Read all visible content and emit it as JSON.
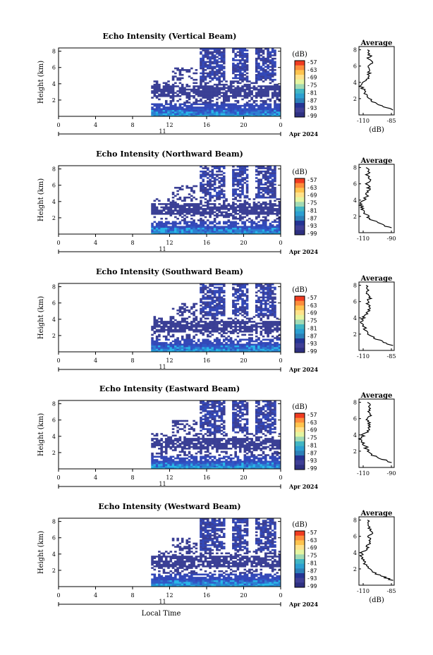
{
  "chart_data": [
    {
      "type": "heatmap",
      "title": "Echo Intensity (Vertical Beam)",
      "xlabel": "",
      "ylabel": "Height (km)",
      "xticks": [
        "0",
        "4",
        "8",
        "12",
        "16",
        "20",
        "0"
      ],
      "yticks": [
        "2",
        "4",
        "6",
        "8"
      ],
      "day_label": "11",
      "date_label": "Apr 2024",
      "data_start_hour": 10,
      "colorbar": {
        "unit": "(dB)",
        "ticks": [
          "-57",
          "-63",
          "-69",
          "-75",
          "-81",
          "-87",
          "-93",
          "-99"
        ]
      },
      "profile": {
        "title": "Average",
        "xlabel": "(dB)",
        "xticks": [
          "-110",
          "-85"
        ],
        "xlim": [
          -110,
          -85
        ],
        "yticks": [
          "2",
          "4",
          "6",
          "8"
        ],
        "ylim": [
          0,
          8
        ],
        "heights": [
          0.6,
          1.0,
          1.5,
          2.0,
          2.5,
          3.0,
          3.5,
          4.0,
          4.5,
          5.0,
          5.5,
          6.0,
          6.5,
          7.0,
          7.5,
          8.0
        ],
        "values": [
          -86,
          -92,
          -99,
          -103,
          -105,
          -106,
          -109,
          -108,
          -104,
          -103,
          -102,
          -103,
          -101,
          -103,
          -102,
          -104
        ]
      }
    },
    {
      "type": "heatmap",
      "title": "Echo Intensity (Northward Beam)",
      "xlabel": "",
      "ylabel": "Height (km)",
      "xticks": [
        "0",
        "4",
        "8",
        "12",
        "16",
        "20",
        "0"
      ],
      "yticks": [
        "2",
        "4",
        "6",
        "8"
      ],
      "day_label": "11",
      "date_label": "Apr 2024",
      "data_start_hour": 10,
      "colorbar": {
        "unit": "(dB)",
        "ticks": [
          "-57",
          "-63",
          "-69",
          "-75",
          "-81",
          "-87",
          "-93",
          "-99"
        ]
      },
      "profile": {
        "title": "Average",
        "xlabel": "",
        "xticks": [
          "-110",
          "-90"
        ],
        "xlim": [
          -110,
          -85
        ],
        "yticks": [
          "2",
          "4",
          "6",
          "8"
        ],
        "ylim": [
          0,
          8
        ],
        "heights": [
          0.6,
          1.0,
          1.5,
          2.0,
          2.5,
          3.0,
          3.5,
          4.0,
          4.5,
          5.0,
          5.5,
          6.0,
          6.5,
          7.0,
          7.5,
          8.0
        ],
        "values": [
          -87,
          -94,
          -100,
          -104,
          -106,
          -108,
          -109,
          -107,
          -104,
          -104,
          -103,
          -104,
          -103,
          -104,
          -103,
          -105
        ]
      }
    },
    {
      "type": "heatmap",
      "title": "Echo Intensity (Southward Beam)",
      "xlabel": "",
      "ylabel": "Height (km)",
      "xticks": [
        "0",
        "4",
        "8",
        "12",
        "16",
        "20",
        "0"
      ],
      "yticks": [
        "2",
        "4",
        "6",
        "8"
      ],
      "day_label": "11",
      "date_label": "Apr 2024",
      "data_start_hour": 10,
      "colorbar": {
        "unit": "(dB)",
        "ticks": [
          "-57",
          "-63",
          "-69",
          "-75",
          "-81",
          "-87",
          "-93",
          "-99"
        ]
      },
      "profile": {
        "title": "Average",
        "xlabel": "",
        "xticks": [
          "-110",
          "-85"
        ],
        "xlim": [
          -110,
          -85
        ],
        "yticks": [
          "2",
          "4",
          "6",
          "8"
        ],
        "ylim": [
          0,
          8
        ],
        "heights": [
          0.6,
          1.0,
          1.5,
          2.0,
          2.5,
          3.0,
          3.5,
          4.0,
          4.5,
          5.0,
          5.5,
          6.0,
          6.5,
          7.0,
          7.5,
          8.0
        ],
        "values": [
          -86,
          -93,
          -99,
          -103,
          -105,
          -107,
          -109,
          -107,
          -104,
          -103,
          -103,
          -104,
          -102,
          -104,
          -103,
          -105
        ]
      }
    },
    {
      "type": "heatmap",
      "title": "Echo Intensity (Eastward Beam)",
      "xlabel": "",
      "ylabel": "Height (km)",
      "xticks": [
        "0",
        "4",
        "8",
        "12",
        "16",
        "20",
        "0"
      ],
      "yticks": [
        "2",
        "4",
        "6",
        "8"
      ],
      "day_label": "11",
      "date_label": "Apr 2024",
      "data_start_hour": 10,
      "colorbar": {
        "unit": "(dB)",
        "ticks": [
          "-57",
          "-63",
          "-69",
          "-75",
          "-81",
          "-87",
          "-93",
          "-99"
        ]
      },
      "profile": {
        "title": "Average",
        "xlabel": "",
        "xticks": [
          "-110",
          "-90"
        ],
        "xlim": [
          -110,
          -85
        ],
        "yticks": [
          "2",
          "4",
          "6",
          "8"
        ],
        "ylim": [
          0,
          8
        ],
        "heights": [
          0.6,
          1.0,
          1.5,
          2.0,
          2.5,
          3.0,
          3.5,
          4.0,
          4.5,
          5.0,
          5.5,
          6.0,
          6.5,
          7.0,
          7.5,
          8.0
        ],
        "values": [
          -87,
          -93,
          -100,
          -104,
          -105,
          -107,
          -109,
          -107,
          -104,
          -103,
          -102,
          -104,
          -102,
          -103,
          -102,
          -104
        ]
      }
    },
    {
      "type": "heatmap",
      "title": "Echo Intensity (Westward Beam)",
      "xlabel": "Local Time",
      "ylabel": "Height (km)",
      "xticks": [
        "0",
        "4",
        "8",
        "12",
        "16",
        "20",
        "0"
      ],
      "yticks": [
        "2",
        "4",
        "6",
        "8"
      ],
      "day_label": "11",
      "date_label": "Apr 2024",
      "data_start_hour": 10,
      "colorbar": {
        "unit": "(dB)",
        "ticks": [
          "-57",
          "-63",
          "-69",
          "-75",
          "-81",
          "-87",
          "-93",
          "-99"
        ]
      },
      "profile": {
        "title": "Average",
        "xlabel": "(dB)",
        "xticks": [
          "-110",
          "-85"
        ],
        "xlim": [
          -110,
          -85
        ],
        "yticks": [
          "2",
          "4",
          "6",
          "8"
        ],
        "ylim": [
          0,
          8
        ],
        "heights": [
          0.6,
          1.0,
          1.5,
          2.0,
          2.5,
          3.0,
          3.5,
          4.0,
          4.5,
          5.0,
          5.5,
          6.0,
          6.5,
          7.0,
          7.5,
          8.0
        ],
        "values": [
          -86,
          -92,
          -99,
          -103,
          -105,
          -106,
          -109,
          -108,
          -104,
          -103,
          -102,
          -103,
          -101,
          -103,
          -102,
          -104
        ]
      }
    }
  ]
}
